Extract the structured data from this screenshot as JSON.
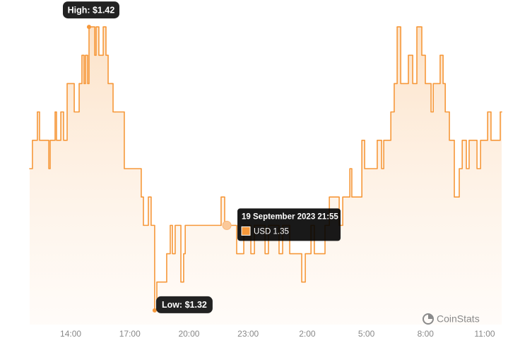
{
  "chart_data": {
    "type": "line",
    "step": true,
    "series": [
      {
        "color": "#f6983a",
        "x": [
          11.92,
          12.06,
          12.31,
          12.42,
          12.89,
          12.96,
          13.21,
          13.28,
          13.5,
          13.64,
          13.82,
          14.18,
          14.43,
          14.57,
          14.68,
          14.75,
          14.86,
          14.93,
          15.22,
          15.29,
          15.43,
          15.65,
          15.79,
          15.9,
          16.08,
          16.15,
          16.26,
          16.72,
          17.58,
          17.69,
          17.94,
          18.08,
          18.26,
          18.37,
          18.87,
          19.05,
          19.16,
          19.3,
          19.59,
          19.73,
          19.81,
          21.63,
          21.81,
          22.42,
          22.78,
          23.14,
          23.32,
          23.86,
          24.03,
          24.57,
          24.75,
          25.11,
          25.72,
          25.9,
          26.19,
          26.36,
          26.9,
          27.12,
          27.62,
          27.8,
          28.16,
          28.26,
          28.77,
          28.91,
          29.55,
          29.77,
          29.88,
          30.24,
          30.41,
          30.56,
          30.74,
          31.13,
          31.35,
          31.56,
          31.81,
          31.99,
          32.28,
          32.39,
          32.74,
          32.89,
          33.0,
          33.21,
          33.46,
          33.71,
          33.86,
          34.07,
          34.21,
          34.61,
          34.79,
          35.15,
          35.32,
          35.79
        ],
        "values": [
          1.37,
          1.38,
          1.39,
          1.38,
          1.37,
          1.38,
          1.39,
          1.38,
          1.39,
          1.38,
          1.4,
          1.39,
          1.4,
          1.41,
          1.4,
          1.41,
          1.4,
          1.42,
          1.41,
          1.42,
          1.41,
          1.42,
          1.41,
          1.4,
          1.4,
          1.39,
          1.39,
          1.37,
          1.36,
          1.35,
          1.36,
          1.35,
          1.32,
          1.33,
          1.34,
          1.35,
          1.34,
          1.35,
          1.33,
          1.34,
          1.35,
          1.36,
          1.35,
          1.34,
          1.35,
          1.34,
          1.35,
          1.34,
          1.35,
          1.34,
          1.35,
          1.34,
          1.33,
          1.34,
          1.35,
          1.34,
          1.35,
          1.36,
          1.35,
          1.36,
          1.37,
          1.36,
          1.38,
          1.37,
          1.38,
          1.37,
          1.38,
          1.39,
          1.4,
          1.42,
          1.4,
          1.41,
          1.4,
          1.42,
          1.41,
          1.4,
          1.39,
          1.4,
          1.41,
          1.4,
          1.39,
          1.38,
          1.36,
          1.37,
          1.38,
          1.37,
          1.38,
          1.37,
          1.38,
          1.39,
          1.38,
          1.39
        ]
      }
    ],
    "xlim": [
      11.92,
      35.86
    ],
    "ylim": [
      1.315,
      1.425
    ],
    "xticks": [
      {
        "value": 14,
        "label": "14:00"
      },
      {
        "value": 17,
        "label": "17:00"
      },
      {
        "value": 20,
        "label": "20:00"
      },
      {
        "value": 23,
        "label": "23:00"
      },
      {
        "value": 26,
        "label": "2:00"
      },
      {
        "value": 29,
        "label": "5:00"
      },
      {
        "value": 32,
        "label": "8:00"
      },
      {
        "value": 35,
        "label": "11:00"
      }
    ],
    "annotations": [
      {
        "x": 14.93,
        "value": 1.42,
        "label": "High: $1.42"
      },
      {
        "x": 18.26,
        "value": 1.32,
        "label": "Low: $1.32"
      }
    ],
    "tooltip": {
      "x": 21.92,
      "value": 1.35,
      "title": "19 September 2023 21:55",
      "value_label": "USD 1.35"
    },
    "watermark": "CoinStats"
  }
}
